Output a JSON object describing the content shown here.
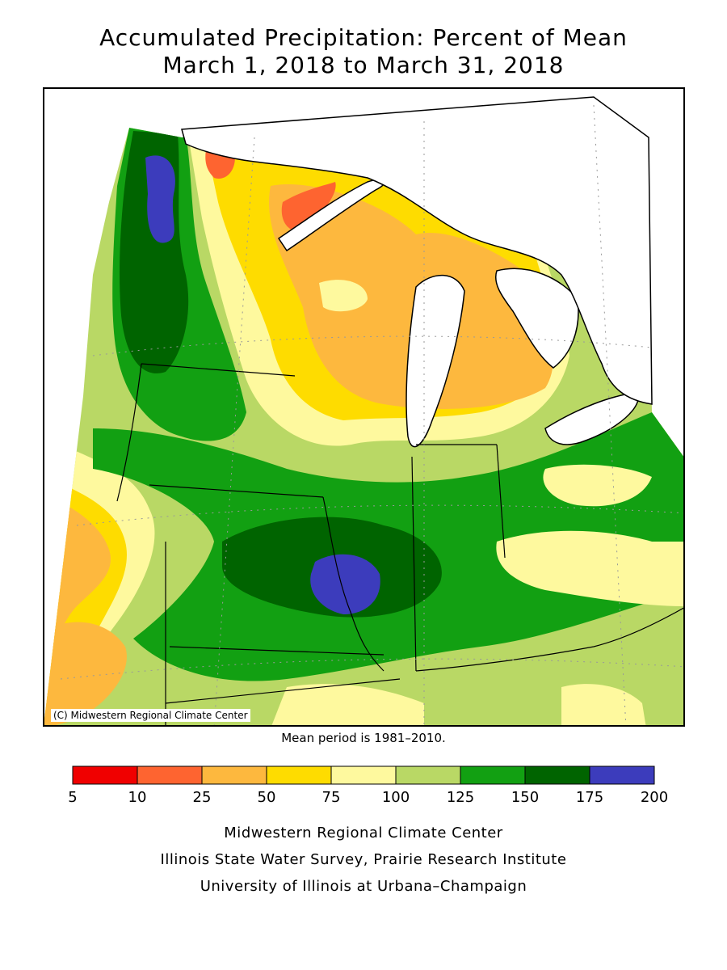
{
  "title": {
    "line1": "Accumulated Precipitation: Percent of Mean",
    "line2": "March 1, 2018 to March 31, 2018"
  },
  "map": {
    "copyright": "(C) Midwestern Regional Climate Center",
    "mean_period": "Mean period is 1981–2010."
  },
  "legend": {
    "ticks": [
      "5",
      "10",
      "25",
      "50",
      "75",
      "100",
      "125",
      "150",
      "175",
      "200"
    ],
    "bins": [
      {
        "from": 5,
        "to": 10,
        "color": "#f00000"
      },
      {
        "from": 10,
        "to": 25,
        "color": "#fe6430"
      },
      {
        "from": 25,
        "to": 50,
        "color": "#fdb83e"
      },
      {
        "from": 50,
        "to": 75,
        "color": "#fedc00"
      },
      {
        "from": 75,
        "to": 100,
        "color": "#fef99e"
      },
      {
        "from": 100,
        "to": 125,
        "color": "#b9d865"
      },
      {
        "from": 125,
        "to": 150,
        "color": "#12a012"
      },
      {
        "from": 150,
        "to": 175,
        "color": "#006400"
      },
      {
        "from": 175,
        "to": 200,
        "color": "#3c3cbc"
      }
    ]
  },
  "credits": {
    "line1": "Midwestern Regional Climate Center",
    "line2": "Illinois State Water Survey, Prairie Research Institute",
    "line3": "University of Illinois at Urbana–Champaign"
  }
}
